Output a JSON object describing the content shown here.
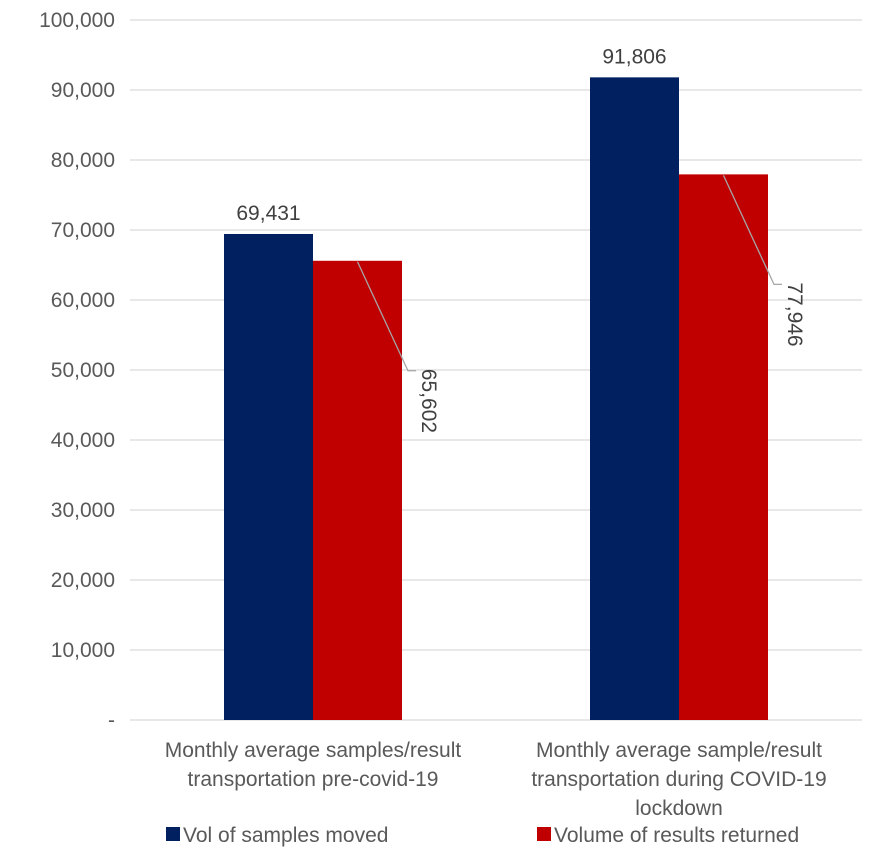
{
  "chart_data": {
    "type": "bar",
    "title": "",
    "xlabel": "",
    "ylabel": "",
    "categories": [
      [
        "Monthly average samples/result",
        "transportation pre-covid-19"
      ],
      [
        "Monthly average sample/result",
        "transportation during COVID-19",
        "lockdown"
      ]
    ],
    "series": [
      {
        "name": "Vol of samples moved",
        "color": "#002060",
        "values": [
          69431,
          91806
        ],
        "labels": [
          "69,431",
          "91,806"
        ]
      },
      {
        "name": "Volume of results returned",
        "color": "#C00000",
        "values": [
          65602,
          77946
        ],
        "labels": [
          "65,602",
          "77,946"
        ]
      }
    ],
    "ylim": [
      0,
      100000
    ],
    "yticks": [
      {
        "value": 0,
        "label": "-"
      },
      {
        "value": 10000,
        "label": "10,000"
      },
      {
        "value": 20000,
        "label": "20,000"
      },
      {
        "value": 30000,
        "label": "30,000"
      },
      {
        "value": 40000,
        "label": "40,000"
      },
      {
        "value": 50000,
        "label": "50,000"
      },
      {
        "value": 60000,
        "label": "60,000"
      },
      {
        "value": 70000,
        "label": "70,000"
      },
      {
        "value": 80000,
        "label": "80,000"
      },
      {
        "value": 90000,
        "label": "90,000"
      },
      {
        "value": 100000,
        "label": "100,000"
      }
    ],
    "grid": true,
    "legend_position": "bottom"
  }
}
